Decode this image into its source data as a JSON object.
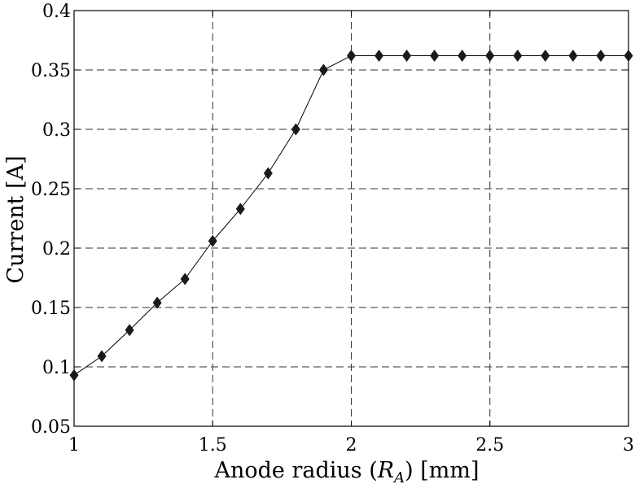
{
  "chart_data": {
    "type": "line",
    "title": "",
    "xlabel_prefix": "Anode radius (",
    "xlabel_var": "R",
    "xlabel_sub": "A",
    "xlabel_suffix": ") [mm]",
    "ylabel": "Current [A]",
    "xlim": [
      1,
      3
    ],
    "ylim": [
      0.05,
      0.4
    ],
    "xticks": [
      1,
      1.5,
      2,
      2.5,
      3
    ],
    "xtick_labels": [
      "1",
      "1.5",
      "2",
      "2.5",
      "3"
    ],
    "yticks": [
      0.05,
      0.1,
      0.15,
      0.2,
      0.25,
      0.3,
      0.35,
      0.4
    ],
    "ytick_labels": [
      "0.05",
      "0.1",
      "0.15",
      "0.2",
      "0.25",
      "0.3",
      "0.35",
      "0.4"
    ],
    "grid": true,
    "marker": "diamond",
    "series": [
      {
        "x": [
          1.0,
          1.1,
          1.2,
          1.3,
          1.4,
          1.5,
          1.6,
          1.7,
          1.8,
          1.9,
          2.0,
          2.1,
          2.2,
          2.3,
          2.4,
          2.5,
          2.6,
          2.7,
          2.8,
          2.9,
          3.0
        ],
        "y": [
          0.093,
          0.109,
          0.131,
          0.154,
          0.174,
          0.206,
          0.233,
          0.263,
          0.3,
          0.35,
          0.362,
          0.362,
          0.362,
          0.362,
          0.362,
          0.362,
          0.362,
          0.362,
          0.362,
          0.362,
          0.362
        ]
      }
    ]
  }
}
